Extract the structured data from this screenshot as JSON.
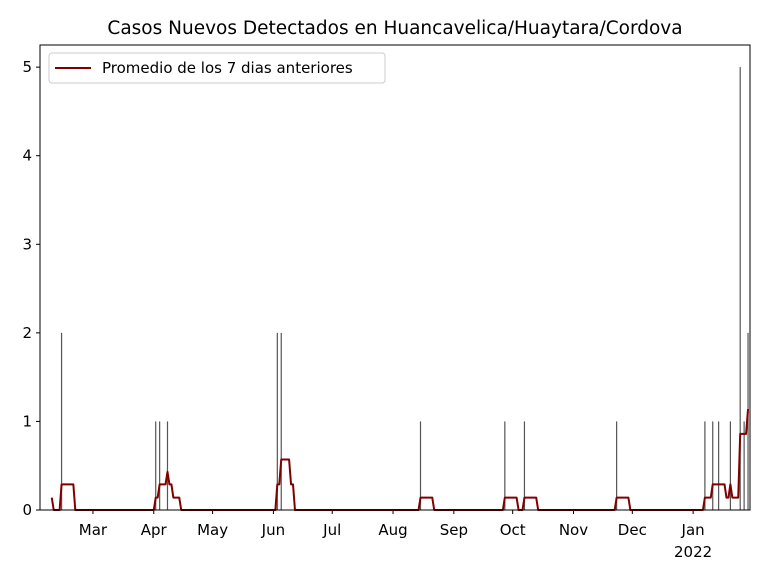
{
  "chart_data": {
    "type": "combo",
    "title": "Casos Nuevos Detectados en Huancavelica/Huaytara/Cordova",
    "xlim": [
      1,
      363
    ],
    "xticks": [
      {
        "value": 28,
        "label": "Mar"
      },
      {
        "value": 59,
        "label": "Apr"
      },
      {
        "value": 89,
        "label": "May"
      },
      {
        "value": 120,
        "label": "Jun"
      },
      {
        "value": 150,
        "label": "Jul"
      },
      {
        "value": 181,
        "label": "Aug"
      },
      {
        "value": 212,
        "label": "Sep"
      },
      {
        "value": 242,
        "label": "Oct"
      },
      {
        "value": 273,
        "label": "Nov"
      },
      {
        "value": 303,
        "label": "Dec"
      },
      {
        "value": 334,
        "label": "Jan"
      }
    ],
    "x_year_label": "2022",
    "ylim": [
      0,
      5.25
    ],
    "yticks": [
      0,
      1,
      2,
      3,
      4,
      5
    ],
    "legend": "upper left",
    "series": [
      {
        "type": "bar",
        "color": "#555555",
        "x": [
          12,
          60,
          62,
          66,
          122,
          124,
          195,
          238,
          248,
          295,
          340,
          344,
          347,
          353,
          358,
          360,
          362
        ],
        "values": [
          2,
          1,
          1,
          1,
          2,
          2,
          1,
          1,
          1,
          1,
          1,
          1,
          1,
          1,
          5,
          1,
          2
        ]
      },
      {
        "type": "line",
        "name": "Promedio de los 7 dias anteriores",
        "color": "#800000",
        "x": [
          7,
          8,
          11,
          12,
          18,
          19,
          59,
          60,
          61,
          62,
          65,
          66,
          67,
          68,
          69,
          72,
          73,
          121,
          122,
          123,
          124,
          128,
          129,
          130,
          131,
          194,
          195,
          201,
          202,
          237,
          238,
          244,
          245,
          247,
          248,
          254,
          255,
          294,
          295,
          301,
          302,
          339,
          340,
          343,
          344,
          350,
          351,
          352,
          353,
          354,
          357,
          358,
          361,
          362
        ],
        "values": [
          0.14,
          0,
          0,
          0.29,
          0.29,
          0,
          0,
          0.14,
          0.14,
          0.29,
          0.29,
          0.43,
          0.29,
          0.29,
          0.14,
          0.14,
          0,
          0,
          0.29,
          0.29,
          0.57,
          0.57,
          0.29,
          0.29,
          0,
          0,
          0.14,
          0.14,
          0,
          0,
          0.14,
          0.14,
          0,
          0,
          0.14,
          0.14,
          0,
          0,
          0.14,
          0.14,
          0,
          0,
          0.14,
          0.14,
          0.29,
          0.29,
          0.14,
          0.14,
          0.29,
          0.14,
          0.14,
          0.86,
          0.86,
          1.14
        ]
      }
    ]
  }
}
